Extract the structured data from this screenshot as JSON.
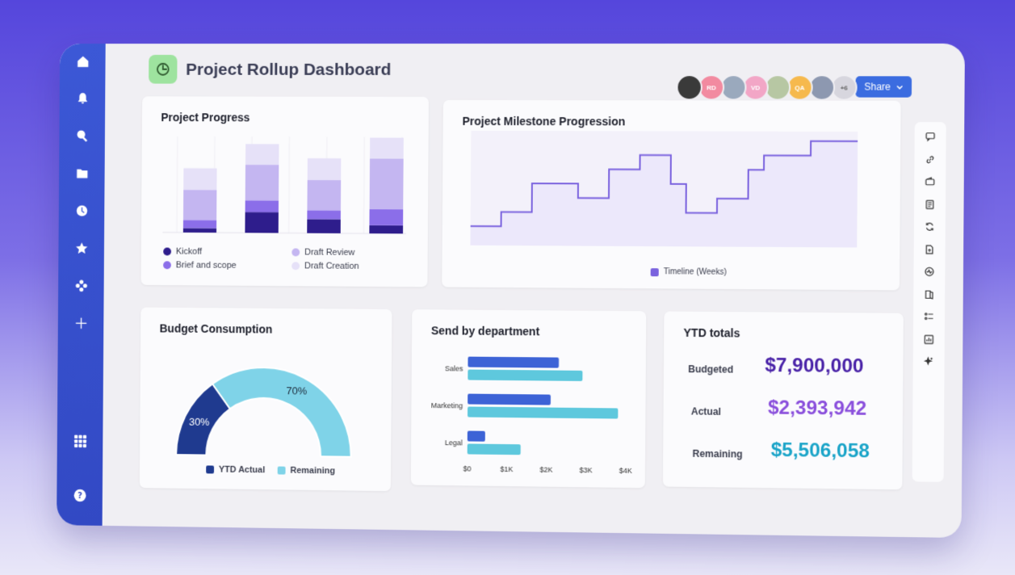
{
  "header": {
    "title": "Project Rollup Dashboard",
    "share_label": "Share"
  },
  "avatars": [
    {
      "initials": "",
      "color": "#3a3a3a"
    },
    {
      "initials": "RD",
      "color": "#f28aa0"
    },
    {
      "initials": "",
      "color": "#9aa9bd"
    },
    {
      "initials": "VD",
      "color": "#f2a6c6"
    },
    {
      "initials": "",
      "color": "#b7c7a3"
    },
    {
      "initials": "QA",
      "color": "#f6b94d"
    },
    {
      "initials": "",
      "color": "#8d98b0"
    },
    {
      "initials": "+6",
      "color": "#d7d6de"
    }
  ],
  "sidebar": {
    "items": [
      "home-icon",
      "bell-icon",
      "search-icon",
      "folder-icon",
      "clock-icon",
      "star-icon",
      "apps-icon",
      "plus-icon"
    ],
    "bottom": [
      "grid-icon",
      "help-icon"
    ]
  },
  "rail": [
    "comment-icon",
    "link-icon",
    "wallet-icon",
    "document-icon",
    "sync-icon",
    "file-add-icon",
    "activity-icon",
    "book-icon",
    "list-icon",
    "chart-icon",
    "sparkle-icon"
  ],
  "progress": {
    "title": "Project Progress",
    "legend": [
      {
        "label": "Kickoff",
        "color": "#2e1d8c"
      },
      {
        "label": "Brief and scope",
        "color": "#8b6ee9"
      },
      {
        "label": "Draft Review",
        "color": "#c4b6f1"
      },
      {
        "label": "Draft Creation",
        "color": "#e6e1f8"
      }
    ],
    "chart_data": {
      "type": "bar",
      "stacked": true,
      "categories": [
        "",
        "",
        "",
        ""
      ],
      "series": [
        {
          "name": "Kickoff",
          "values": [
            6,
            28,
            19,
            11
          ]
        },
        {
          "name": "Brief and scope",
          "values": [
            11,
            16,
            12,
            22
          ]
        },
        {
          "name": "Draft Review",
          "values": [
            41,
            48,
            41,
            68
          ]
        },
        {
          "name": "Draft Creation",
          "values": [
            29,
            28,
            29,
            28
          ]
        }
      ],
      "ylim": [
        0,
        130
      ],
      "grid": true
    }
  },
  "milestone": {
    "title": "Project Milestone Progression",
    "legend": "Timeline (Weeks)",
    "color": "#7a62de",
    "chart_data": {
      "type": "area",
      "step": true,
      "series": [
        {
          "name": "Timeline (Weeks)",
          "values": [
            1,
            1,
            2,
            2,
            4,
            4,
            4,
            3,
            3,
            5,
            5,
            6,
            6,
            4,
            2,
            2,
            3,
            3,
            5,
            6,
            6,
            6,
            7,
            7,
            7
          ]
        }
      ],
      "ylim": [
        0,
        8
      ]
    }
  },
  "budget": {
    "title": "Budget Consumption",
    "legend": [
      {
        "label": "YTD Actual",
        "color": "#1f3a8f"
      },
      {
        "label": "Remaining",
        "color": "#7fd3e8"
      }
    ],
    "chart_data": {
      "type": "pie",
      "shape": "half-donut",
      "labels": [
        "YTD Actual",
        "Remaining"
      ],
      "values": [
        30,
        70
      ],
      "value_labels": [
        "30%",
        "70%"
      ]
    }
  },
  "department": {
    "title": "Send by department",
    "colors": [
      "#3d63d6",
      "#5ec8dd"
    ],
    "chart_data": {
      "type": "bar",
      "orientation": "horizontal",
      "categories": [
        "Sales",
        "Marketing",
        "Legal"
      ],
      "series": [
        {
          "values": [
            2300,
            2100,
            450
          ]
        },
        {
          "values": [
            2900,
            3800,
            1350
          ]
        }
      ],
      "xlim": [
        0,
        4000
      ],
      "xticks": [
        "$0",
        "$1K",
        "$2K",
        "$3K",
        "$4K"
      ]
    }
  },
  "ytd": {
    "title": "YTD totals",
    "rows": [
      {
        "label": "Budgeted",
        "value": "$7,900,000",
        "color": "#4a23a8"
      },
      {
        "label": "Actual",
        "value": "$2,393,942",
        "color": "#8a4fdc"
      },
      {
        "label": "Remaining",
        "value": "$5,506,058",
        "color": "#1aa4c8"
      }
    ]
  }
}
